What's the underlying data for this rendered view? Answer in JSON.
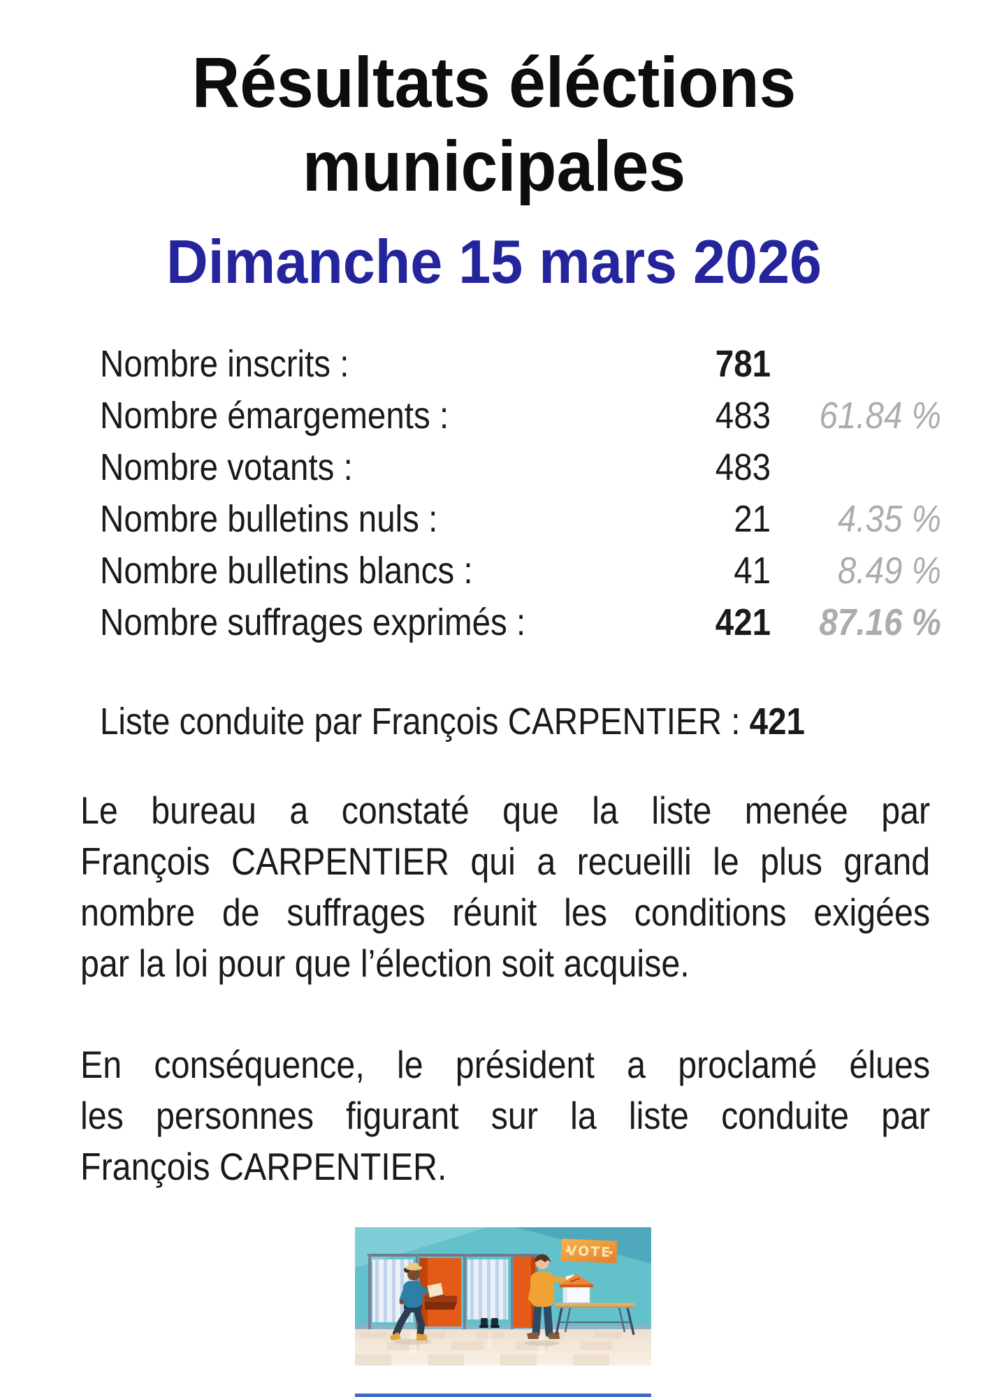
{
  "title": {
    "line1": "Résultats éléctions",
    "line2": "municipales"
  },
  "date": "Dimanche 15 mars 2026",
  "stats": {
    "rows": [
      {
        "label": "Nombre inscrits :",
        "value": "781",
        "value_bold": true,
        "pct": "",
        "pct_bold": false
      },
      {
        "label": "Nombre émargements :",
        "value": "483",
        "value_bold": false,
        "pct": "61.84 %",
        "pct_bold": false
      },
      {
        "label": "Nombre votants :",
        "value": "483",
        "value_bold": false,
        "pct": "",
        "pct_bold": false
      },
      {
        "label": "Nombre bulletins nuls :",
        "value": "21",
        "value_bold": false,
        "pct": "4.35 %",
        "pct_bold": false
      },
      {
        "label": "Nombre bulletins blancs :",
        "value": "41",
        "value_bold": false,
        "pct": "8.49 %",
        "pct_bold": false
      },
      {
        "label": "Nombre suffrages exprimés :",
        "value": "421",
        "value_bold": true,
        "pct": "87.16 %",
        "pct_bold": true
      }
    ]
  },
  "list_result": {
    "prefix": "Liste conduite par François CARPENTIER :",
    "value": "421"
  },
  "paragraphs": [
    {
      "lines": [
        "Le bureau a constaté que la liste menée par",
        "François CARPENTIER qui a recueilli le plus grand",
        "nombre de suffrages réunit les conditions exigées",
        "par la loi pour que l’élection soit acquise."
      ]
    },
    {
      "lines": [
        "En conséquence, le président  a proclamé élues",
        "les personnes figurant sur la liste conduite par",
        "François CARPENTIER."
      ]
    }
  ],
  "illustration": {
    "description": "cartoon polling station with voting booths, woman voter, man casting ballot",
    "vote_sign": {
      "text": "VOTE",
      "star": "★"
    }
  },
  "colors": {
    "title_black": "#0d0d0d",
    "date_blue": "#24249c",
    "percent_gray": "#acacac",
    "wall_teal": "#63c1cc",
    "booth_orange": "#e45a17",
    "floor_cream": "#f5ebdd",
    "sign_orange": "#ee8a33",
    "sweater_orange": "#f0a235",
    "bottom_line_blue": "#4169c8"
  }
}
